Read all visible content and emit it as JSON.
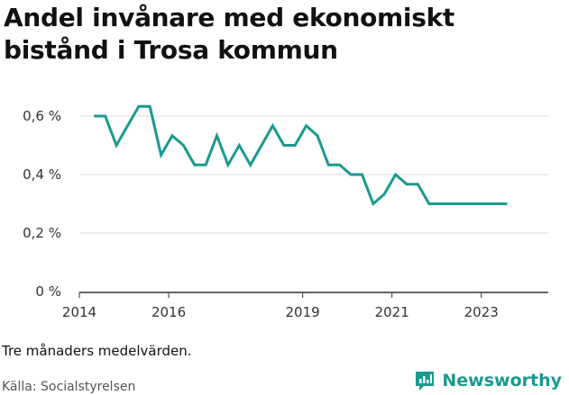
{
  "title": "Andel invånare med ekonomiskt bistånd i Trosa kommun",
  "note": "Tre månaders medelvärden.",
  "source": "Källa: Socialstyrelsen",
  "brand": {
    "name": "Newsworthy",
    "icon": "newsworthy-chart-icon",
    "color": "#1a9a8e"
  },
  "colors": {
    "line": "#1a9a8e",
    "grid": "#d9d9d9",
    "axis": "#333333"
  },
  "chart_data": {
    "type": "line",
    "title": "Andel invånare med ekonomiskt bistånd i Trosa kommun",
    "xlabel": "",
    "ylabel": "",
    "xlim": [
      2014.0,
      2024.5
    ],
    "ylim": [
      0,
      0.6
    ],
    "yticks": [
      0,
      0.2,
      0.4,
      0.6
    ],
    "ytick_labels": [
      "0 %",
      "0,2 %",
      "0,4 %",
      "0,6 %"
    ],
    "xticks": [
      2014,
      2016,
      2019,
      2021,
      2023
    ],
    "xtick_labels": [
      "2014",
      "2016",
      "2019",
      "2021",
      "2023"
    ],
    "grid": "horizontal",
    "legend": "none",
    "series": [
      {
        "values_unit": "percent",
        "x": [
          2014.33,
          2014.58,
          2014.83,
          2015.08,
          2015.33,
          2015.58,
          2015.83,
          2016.08,
          2016.33,
          2016.58,
          2016.83,
          2017.08,
          2017.33,
          2017.58,
          2017.83,
          2018.08,
          2018.33,
          2018.58,
          2018.83,
          2019.08,
          2019.33,
          2019.58,
          2019.83,
          2020.08,
          2020.33,
          2020.58,
          2020.83,
          2021.08,
          2021.33,
          2021.58,
          2021.83,
          2022.08,
          2022.33,
          2022.58,
          2022.83,
          2023.08,
          2023.33,
          2023.58
        ],
        "y": [
          0.6,
          0.6,
          0.5,
          0.567,
          0.633,
          0.633,
          0.467,
          0.533,
          0.5,
          0.433,
          0.433,
          0.533,
          0.433,
          0.5,
          0.433,
          0.5,
          0.567,
          0.5,
          0.5,
          0.567,
          0.533,
          0.433,
          0.433,
          0.4,
          0.4,
          0.3,
          0.333,
          0.4,
          0.367,
          0.367,
          0.3,
          0.3,
          0.3,
          0.3,
          0.3,
          0.3,
          0.3,
          0.3
        ]
      }
    ]
  }
}
